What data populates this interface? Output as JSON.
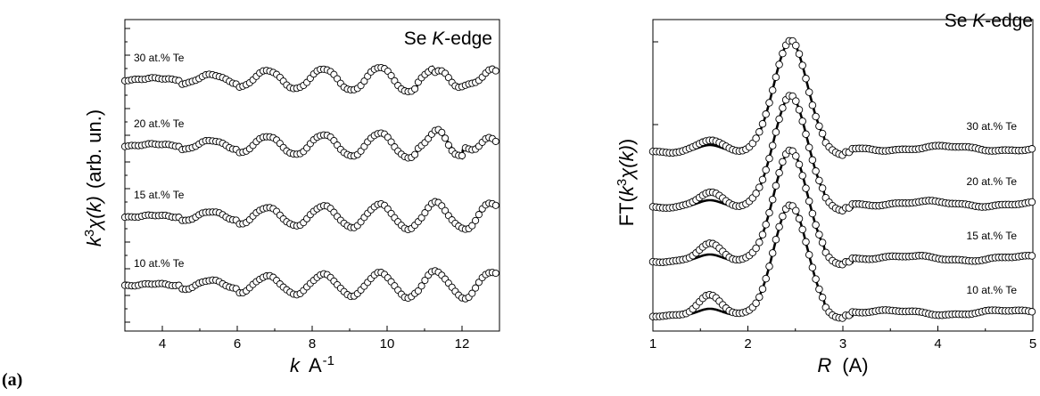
{
  "panel_label": "(a)",
  "chart_data": [
    {
      "type": "line",
      "title_main": "Se ",
      "title_italic": "K",
      "title_rest": "-edge",
      "xlabel_var": "k",
      "xlabel_unit": "A",
      "xlabel_exp": "-1",
      "ylabel_k": "k",
      "ylabel_exp": "3",
      "ylabel_chi": "χ(k)",
      "ylabel_unit": "(arb. un.)",
      "xlim": [
        3,
        13
      ],
      "xticks": [
        "4",
        "6",
        "8",
        "10",
        "12"
      ],
      "grid": false,
      "series": [
        {
          "name": "30 at.% Te",
          "offset": 3.0,
          "noise": 0.8
        },
        {
          "name": "20 at.% Te",
          "offset": 2.0,
          "noise": 1.0
        },
        {
          "name": "15 at.% Te",
          "offset": 1.0,
          "noise": 0.5
        },
        {
          "name": "10 at.% Te",
          "offset": 0.0,
          "noise": 0.4
        }
      ]
    },
    {
      "type": "line",
      "title_main": "Se ",
      "title_italic": "K",
      "title_rest": "-edge",
      "xlabel_var": "R",
      "xlabel_unit": "(A)",
      "ylabel_ft": "FT(",
      "ylabel_k": "k",
      "ylabel_exp": "3",
      "ylabel_chi": "χ(k)",
      "ylabel_close": ")",
      "xlim": [
        1,
        5
      ],
      "xticks": [
        "1",
        "2",
        "3",
        "4",
        "5"
      ],
      "grid": false,
      "series": [
        {
          "name": "30 at.% Te",
          "offset": 3.0,
          "peak": 2.42
        },
        {
          "name": "20 at.% Te",
          "offset": 2.0,
          "peak": 2.42
        },
        {
          "name": "15 at.% Te",
          "offset": 1.0,
          "peak": 2.42
        },
        {
          "name": "10 at.% Te",
          "offset": 0.0,
          "peak": 2.42
        }
      ]
    }
  ]
}
